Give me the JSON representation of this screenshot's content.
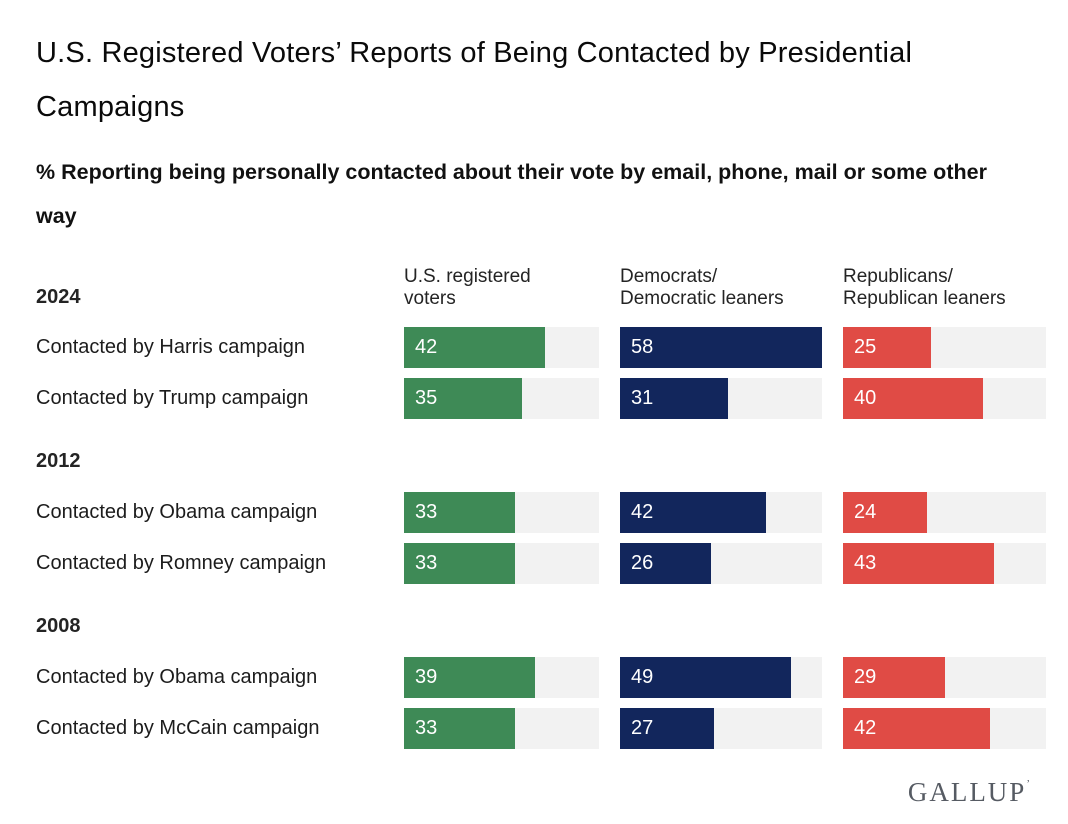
{
  "page": {
    "title": "U.S. Registered Voters’ Reports of Being Contacted by Presidential Campaigns",
    "subtitle": "% Reporting being personally contacted about their vote by email, phone, mail or some other way",
    "brand": "GALLUP",
    "brand_mark": "’"
  },
  "chart_data": {
    "type": "bar",
    "orientation": "horizontal",
    "value_unit": "%",
    "axis_max": 58,
    "track_color": "#f2f2f2",
    "columns": [
      {
        "label": "U.S. registered voters",
        "line1": "U.S. registered",
        "line2": "voters",
        "color": "#3e8a56"
      },
      {
        "label": "Democrats/Democratic leaners",
        "line1": "Democrats/",
        "line2": "Democratic leaners",
        "color": "#12265c"
      },
      {
        "label": "Republicans/Republican leaners",
        "line1": "Republicans/",
        "line2": "Republican leaners",
        "color": "#e04b45"
      }
    ],
    "groups": [
      {
        "year": "2024",
        "rows": [
          {
            "label": "Contacted by Harris campaign",
            "values": [
              42,
              58,
              25
            ]
          },
          {
            "label": "Contacted by Trump campaign",
            "values": [
              35,
              31,
              40
            ]
          }
        ]
      },
      {
        "year": "2012",
        "rows": [
          {
            "label": "Contacted by Obama campaign",
            "values": [
              33,
              42,
              24
            ]
          },
          {
            "label": "Contacted by Romney campaign",
            "values": [
              33,
              26,
              43
            ]
          }
        ]
      },
      {
        "year": "2008",
        "rows": [
          {
            "label": "Contacted by Obama campaign",
            "values": [
              39,
              49,
              29
            ]
          },
          {
            "label": "Contacted by McCain campaign",
            "values": [
              33,
              27,
              42
            ]
          }
        ]
      }
    ]
  }
}
